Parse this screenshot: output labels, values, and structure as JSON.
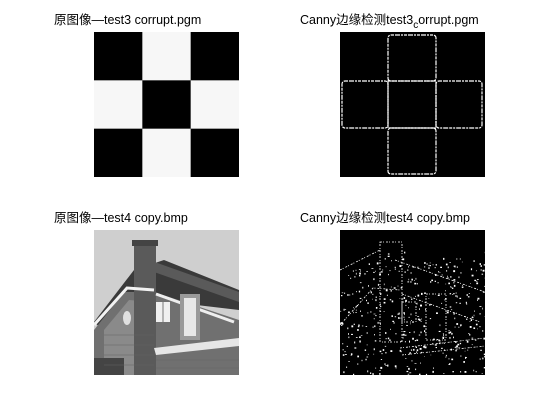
{
  "figure": {
    "panels": [
      {
        "title": "原图像—test3 corrupt.pgm"
      },
      {
        "title_main": "Canny边缘检测test3",
        "title_sub": "c",
        "title_rest": "orrupt.pgm"
      },
      {
        "title": "原图像—test4 copy.bmp"
      },
      {
        "title": "Canny边缘检测test4 copy.bmp"
      }
    ]
  },
  "colors": {
    "black": "#000000",
    "white": "#ffffff",
    "edge": "#ffffff"
  },
  "icons": {
    "checkerboard": "checkerboard-image",
    "edges": "edge-map-image",
    "house": "house-photo-image"
  }
}
